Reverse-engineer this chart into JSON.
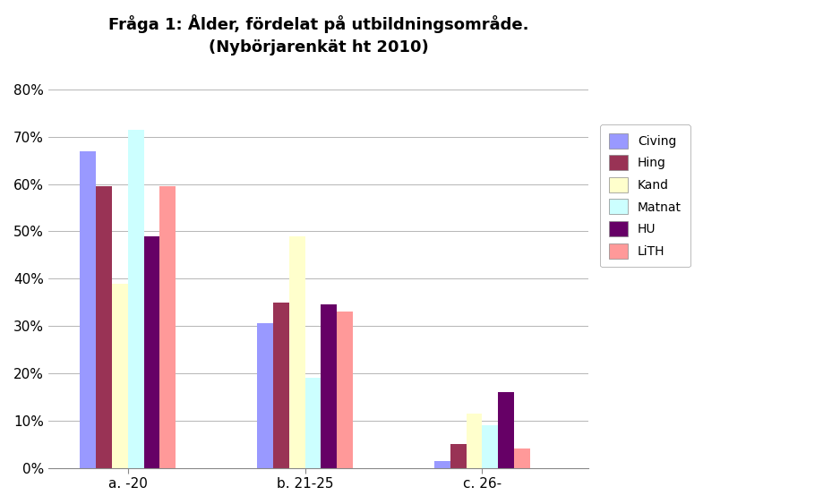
{
  "title": "Fråga 1: Ålder, fördelat på utbildningsområde.\n(Nybörjarenkät ht 2010)",
  "categories": [
    "a. -20",
    "b. 21-25",
    "c. 26-"
  ],
  "series": {
    "Civing": [
      0.67,
      0.305,
      0.015
    ],
    "Hing": [
      0.595,
      0.35,
      0.05
    ],
    "Kand": [
      0.39,
      0.49,
      0.115
    ],
    "Matnat": [
      0.715,
      0.19,
      0.09
    ],
    "HU": [
      0.49,
      0.345,
      0.16
    ],
    "LiTH": [
      0.595,
      0.33,
      0.04
    ]
  },
  "colors": {
    "Civing": "#9999FF",
    "Hing": "#993355",
    "Kand": "#FFFFCC",
    "Matnat": "#CCFFFF",
    "HU": "#660066",
    "LiTH": "#FF9999"
  },
  "ylim": [
    0,
    0.84
  ],
  "yticks": [
    0.0,
    0.1,
    0.2,
    0.3,
    0.4,
    0.5,
    0.6,
    0.7,
    0.8
  ],
  "yticklabels": [
    "0%",
    "10%",
    "20%",
    "30%",
    "40%",
    "50%",
    "60%",
    "70%",
    "80%"
  ],
  "legend_order": [
    "Civing",
    "Hing",
    "Kand",
    "Matnat",
    "HU",
    "LiTH"
  ],
  "background_color": "#FFFFFF",
  "title_fontsize": 13,
  "bar_width": 0.09
}
